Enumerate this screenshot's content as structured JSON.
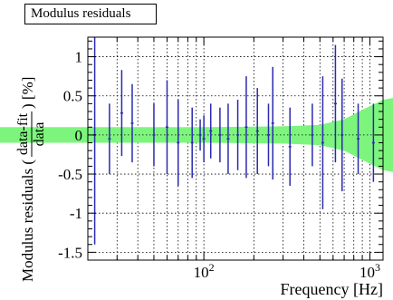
{
  "chart_data": {
    "type": "scatter",
    "title": "Modulus residuals",
    "xlabel": "Frequency [Hz]",
    "ylabel_prefix": "Modulus residuals (",
    "ylabel_fraction_top": "data-fit",
    "ylabel_fraction_bottom": "data",
    "ylabel_suffix": ") [%]",
    "x_scale": "log",
    "xlim": [
      20,
      1200
    ],
    "ylim": [
      -1.6,
      1.25
    ],
    "x_major_ticks": [
      {
        "value": 100,
        "base": "10",
        "exp": "2"
      },
      {
        "value": 1000,
        "base": "10",
        "exp": "3"
      }
    ],
    "y_tick_labels": [
      {
        "value": 1,
        "label": "1"
      },
      {
        "value": 0.5,
        "label": "0.5"
      },
      {
        "value": 0,
        "label": "0"
      },
      {
        "value": -0.5,
        "label": "-0.5"
      },
      {
        "value": -1,
        "label": "-1"
      },
      {
        "value": -1.5,
        "label": "-1.5"
      }
    ],
    "grid": true,
    "band": {
      "color": "#7df57d",
      "x": [
        20,
        100,
        300,
        500,
        700,
        900,
        1200
      ],
      "half_width": [
        0.1,
        0.1,
        0.11,
        0.13,
        0.2,
        0.32,
        0.45
      ]
    },
    "series": [
      {
        "color": "#2a2ab0",
        "points": [
          {
            "x": 22,
            "y": 0.0,
            "err": 1.4
          },
          {
            "x": 27,
            "y": -0.05,
            "err": 0.45
          },
          {
            "x": 32,
            "y": 0.28,
            "err": 0.55
          },
          {
            "x": 37,
            "y": 0.15,
            "err": 0.5
          },
          {
            "x": 50,
            "y": 0.0,
            "err": 0.4
          },
          {
            "x": 60,
            "y": 0.1,
            "err": 0.6
          },
          {
            "x": 70,
            "y": -0.1,
            "err": 0.55
          },
          {
            "x": 85,
            "y": -0.1,
            "err": 0.45
          },
          {
            "x": 95,
            "y": 0.0,
            "err": 0.2
          },
          {
            "x": 100,
            "y": -0.05,
            "err": 0.3
          },
          {
            "x": 110,
            "y": 0.05,
            "err": 0.35
          },
          {
            "x": 125,
            "y": 0.0,
            "err": 0.35
          },
          {
            "x": 140,
            "y": -0.05,
            "err": 0.45
          },
          {
            "x": 160,
            "y": 0.0,
            "err": 0.45
          },
          {
            "x": 180,
            "y": 0.1,
            "err": 0.65
          },
          {
            "x": 210,
            "y": 0.05,
            "err": 0.55
          },
          {
            "x": 245,
            "y": 0.0,
            "err": 0.4
          },
          {
            "x": 260,
            "y": 0.15,
            "err": 0.72
          },
          {
            "x": 330,
            "y": -0.15,
            "err": 0.5
          },
          {
            "x": 450,
            "y": 0.0,
            "err": 0.4
          },
          {
            "x": 520,
            "y": -0.1,
            "err": 0.85
          },
          {
            "x": 620,
            "y": 0.4,
            "err": 0.75
          },
          {
            "x": 680,
            "y": 0.0,
            "err": 0.72
          },
          {
            "x": 850,
            "y": -0.05,
            "err": 0.45
          },
          {
            "x": 1050,
            "y": -0.1,
            "err": 0.5
          }
        ]
      }
    ]
  }
}
